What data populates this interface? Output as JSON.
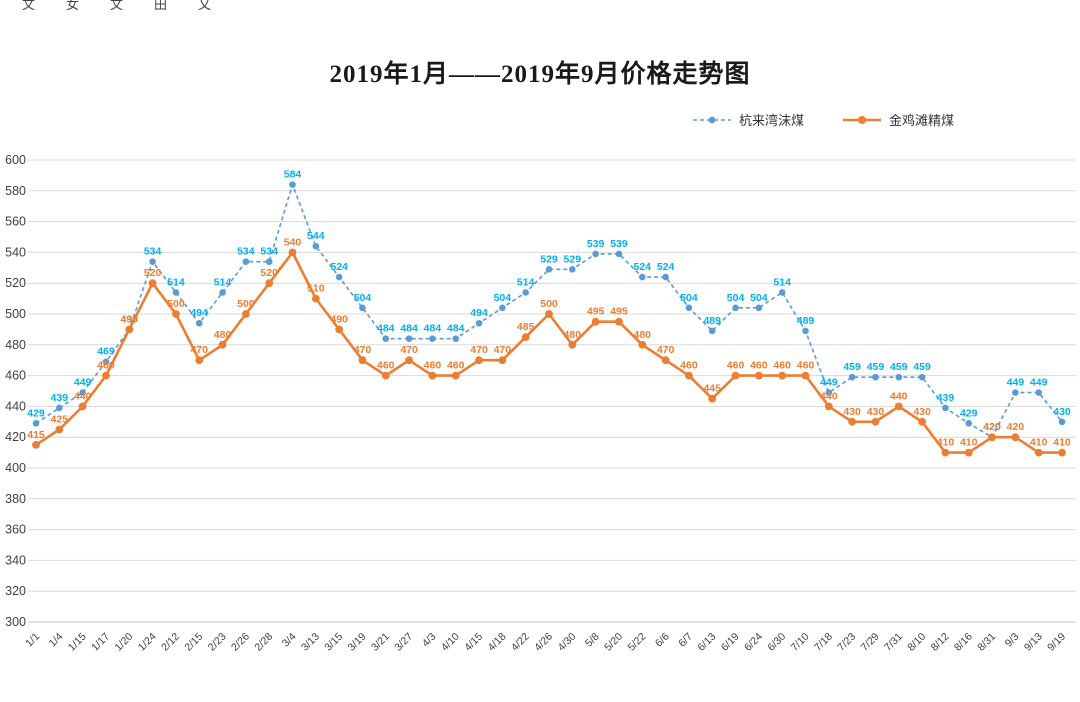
{
  "top_strip": {
    "fragments": [
      "文",
      "女",
      "文",
      "田",
      "乂"
    ]
  },
  "chart_data": {
    "type": "line",
    "title": "2019年1月——2019年9月价格走势图",
    "categories": [
      "1/1",
      "1/4",
      "1/15",
      "1/17",
      "1/20",
      "1/24",
      "2/12",
      "2/15",
      "2/23",
      "2/26",
      "2/28",
      "3/4",
      "3/13",
      "3/15",
      "3/19",
      "3/21",
      "3/27",
      "4/3",
      "4/10",
      "4/15",
      "4/18",
      "4/22",
      "4/26",
      "4/30",
      "5/8",
      "5/20",
      "5/22",
      "6/6",
      "6/7",
      "6/13",
      "6/19",
      "6/24",
      "6/30",
      "7/10",
      "7/18",
      "7/23",
      "7/29",
      "7/31",
      "8/10",
      "8/12",
      "8/16",
      "8/31",
      "9/3",
      "9/13",
      "9/19"
    ],
    "series": [
      {
        "name": "杭来湾沫煤",
        "style": "dashed",
        "color": "#5B9BD5",
        "label_color": "#00B0F0",
        "values": [
          429,
          439,
          449,
          469,
          490,
          534,
          514,
          494,
          514,
          534,
          534,
          584,
          544,
          524,
          504,
          484,
          484,
          484,
          484,
          494,
          504,
          514,
          529,
          529,
          539,
          539,
          524,
          524,
          504,
          489,
          504,
          504,
          514,
          489,
          449,
          459,
          459,
          459,
          459,
          439,
          429,
          420,
          449,
          449,
          430
        ]
      },
      {
        "name": "金鸡滩精煤",
        "style": "solid",
        "color": "#ED7D31",
        "label_color": "#ED7D31",
        "values": [
          415,
          425,
          440,
          460,
          490,
          520,
          500,
          470,
          480,
          500,
          520,
          540,
          510,
          490,
          470,
          460,
          470,
          460,
          460,
          470,
          470,
          485,
          500,
          480,
          495,
          495,
          480,
          470,
          460,
          445,
          460,
          460,
          460,
          460,
          440,
          430,
          430,
          440,
          430,
          410,
          410,
          420,
          420,
          410,
          410
        ]
      }
    ],
    "ylim": [
      300,
      600
    ],
    "yticks": [
      300,
      320,
      340,
      360,
      380,
      400,
      420,
      440,
      460,
      480,
      500,
      520,
      540,
      560,
      580,
      600
    ],
    "grid": true,
    "legend_position": "top-right",
    "gridline_color": "#D9D9D9",
    "baseline_color": "#BFBFBF",
    "axis_label_color": "#404040"
  }
}
